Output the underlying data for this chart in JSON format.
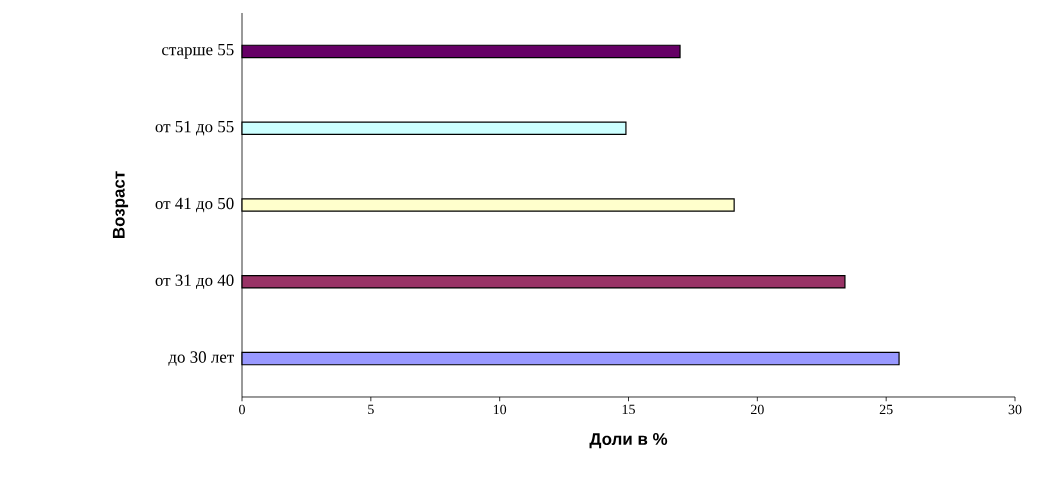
{
  "chart_data": {
    "type": "bar",
    "orientation": "horizontal",
    "categories": [
      "старше 55",
      "от 51 до 55",
      "от 41 до 50",
      "от 31 до 40",
      "до 30 лет"
    ],
    "values": [
      17.0,
      14.9,
      19.1,
      23.4,
      25.5
    ],
    "colors": [
      "#660066",
      "#ccffff",
      "#ffffcc",
      "#993366",
      "#9999ff"
    ],
    "xlabel": "Доли в %",
    "ylabel": "Возраст",
    "xlim": [
      0,
      30
    ],
    "xticks": [
      0,
      5,
      10,
      15,
      20,
      25,
      30
    ],
    "grid": false
  }
}
